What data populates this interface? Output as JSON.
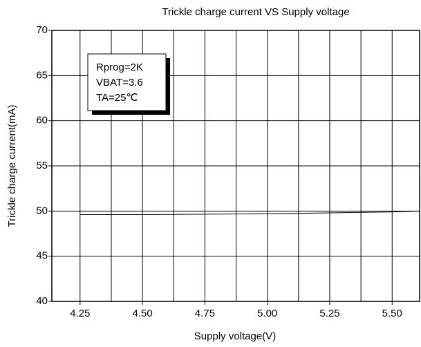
{
  "chart_data": {
    "type": "line",
    "title": "Trickle charge current VS Supply voltage",
    "xlabel": "Supply voltage(V)",
    "ylabel": "Trickle charge current(mA)",
    "annotations": [
      "Rprog=2K",
      "VBAT=3.6",
      "TA=25℃"
    ],
    "x": [
      4.25,
      4.5,
      4.75,
      5.0,
      5.25,
      5.5,
      5.61
    ],
    "series": [
      {
        "name": "Trickle charge current",
        "color": "#000000",
        "values": [
          49.6,
          49.6,
          49.65,
          49.7,
          49.8,
          49.9,
          50.0
        ]
      }
    ],
    "xlim": [
      4.137,
      5.61
    ],
    "ylim": [
      40,
      70
    ],
    "xticks": [
      4.25,
      {
        "value": 4.5,
        "label": "4.50"
      },
      4.75,
      {
        "value": 5.0,
        "label": "5.00"
      },
      5.25,
      {
        "value": 5.5,
        "label": "5.50"
      }
    ],
    "xminor": [
      4.375,
      4.625,
      4.875,
      5.125,
      5.375
    ],
    "yticks": [
      40,
      45,
      50,
      55,
      60,
      65,
      70
    ],
    "grid": true
  }
}
